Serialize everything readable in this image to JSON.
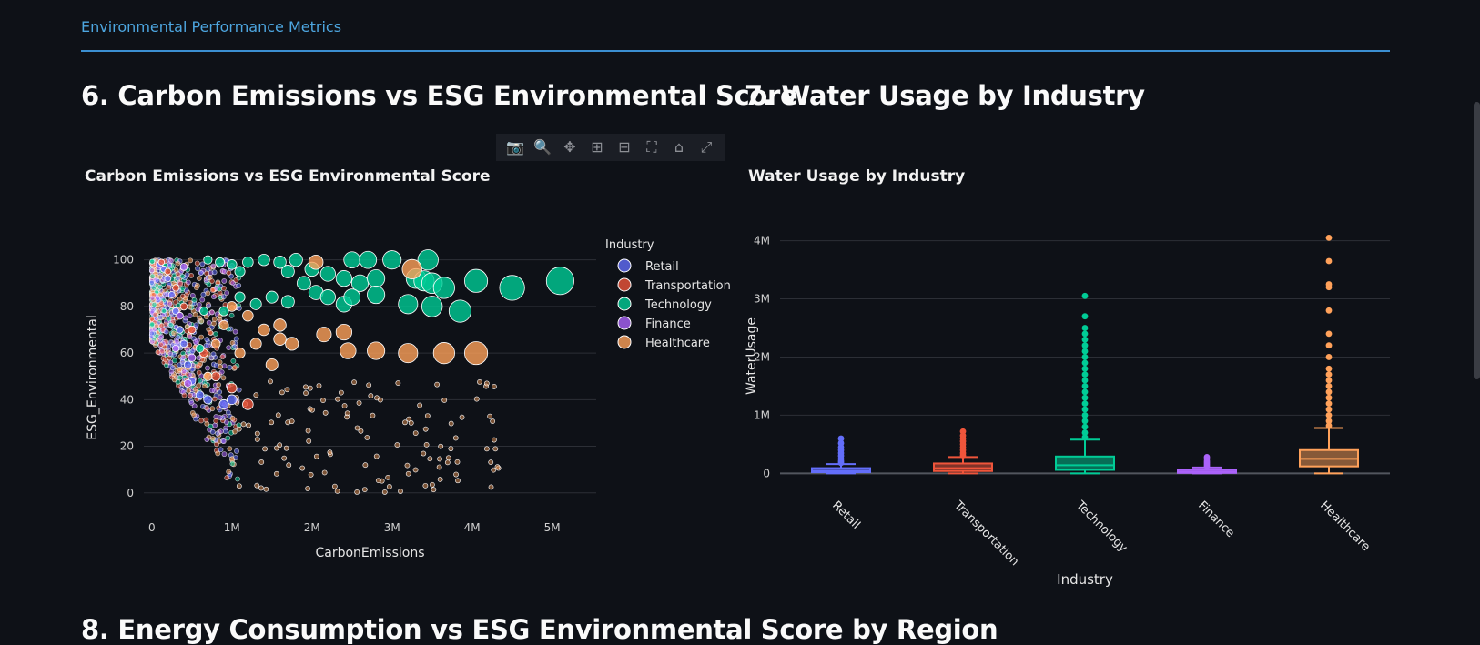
{
  "section_label": "Environmental Performance Metrics",
  "headings": {
    "scatter": "6. Carbon Emissions vs ESG Environmental Score",
    "box": "7. Water Usage by Industry",
    "next": "8. Energy Consumption vs ESG Environmental Score by Region"
  },
  "modebar": [
    {
      "icon": "camera-icon",
      "glyph": "📷"
    },
    {
      "icon": "zoom-icon",
      "glyph": "🔍"
    },
    {
      "icon": "pan-icon",
      "glyph": "✥"
    },
    {
      "icon": "zoom-in-icon",
      "glyph": "⊞"
    },
    {
      "icon": "zoom-out-icon",
      "glyph": "⊟"
    },
    {
      "icon": "autoscale-icon",
      "glyph": "⛶"
    },
    {
      "icon": "home-icon",
      "glyph": "⌂"
    },
    {
      "icon": "fullscreen-icon",
      "glyph": "⤢"
    }
  ],
  "colors": {
    "Retail": "#636efa",
    "Transportation": "#ef553b",
    "Technology": "#00cc96",
    "Finance": "#ab63fa",
    "Healthcare": "#ffa15a"
  },
  "chart_data": [
    {
      "type": "scatter",
      "title": "Carbon Emissions vs ESG Environmental Score",
      "xlabel": "CarbonEmissions",
      "ylabel": "ESG_Environmental",
      "xlim": [
        -100000,
        5550000
      ],
      "ylim": [
        -4,
        103
      ],
      "xticks": [
        0,
        1000000,
        2000000,
        3000000,
        4000000,
        5000000
      ],
      "xtick_labels": [
        "0",
        "1M",
        "2M",
        "3M",
        "4M",
        "5M"
      ],
      "yticks": [
        0,
        20,
        40,
        60,
        80,
        100
      ],
      "ytick_labels": [
        "0",
        "20",
        "40",
        "60",
        "80",
        "100"
      ],
      "grid": true,
      "legend_title": "Industry",
      "legend_position": "right",
      "series": [
        {
          "name": "Retail",
          "color": "#636efa",
          "points": [
            [
              100000,
              98
            ],
            [
              150000,
              96
            ],
            [
              200000,
              92
            ],
            [
              250000,
              85
            ],
            [
              300000,
              78
            ],
            [
              350000,
              70
            ],
            [
              400000,
              64
            ],
            [
              450000,
              55
            ],
            [
              500000,
              48
            ],
            [
              600000,
              42
            ],
            [
              700000,
              40
            ],
            [
              900000,
              38
            ],
            [
              1000000,
              40
            ]
          ]
        },
        {
          "name": "Transportation",
          "color": "#ef553b",
          "points": [
            [
              120000,
              99
            ],
            [
              200000,
              95
            ],
            [
              300000,
              88
            ],
            [
              400000,
              80
            ],
            [
              500000,
              70
            ],
            [
              650000,
              60
            ],
            [
              800000,
              50
            ],
            [
              1000000,
              45
            ],
            [
              1200000,
              38
            ]
          ]
        },
        {
          "name": "Technology",
          "color": "#00cc96",
          "points": [
            [
              700000,
              100
            ],
            [
              850000,
              99
            ],
            [
              1000000,
              98
            ],
            [
              1200000,
              99
            ],
            [
              1400000,
              100
            ],
            [
              1600000,
              99
            ],
            [
              1800000,
              100
            ],
            [
              2000000,
              96
            ],
            [
              2200000,
              94
            ],
            [
              2500000,
              100
            ],
            [
              2700000,
              100
            ],
            [
              3000000,
              100
            ],
            [
              3450000,
              100
            ],
            [
              2400000,
              92
            ],
            [
              2600000,
              90
            ],
            [
              2800000,
              92
            ],
            [
              3300000,
              92
            ],
            [
              3400000,
              91
            ],
            [
              3500000,
              90
            ],
            [
              3650000,
              88
            ],
            [
              4050000,
              91
            ],
            [
              4500000,
              88
            ],
            [
              5100000,
              91
            ],
            [
              3200000,
              81
            ],
            [
              3500000,
              80
            ],
            [
              3850000,
              78
            ],
            [
              2400000,
              81
            ],
            [
              2500000,
              84
            ],
            [
              2800000,
              85
            ],
            [
              2050000,
              86
            ],
            [
              1700000,
              82
            ],
            [
              1500000,
              84
            ],
            [
              1300000,
              81
            ],
            [
              1100000,
              84
            ],
            [
              900000,
              78
            ],
            [
              650000,
              78
            ],
            [
              600000,
              62
            ],
            [
              1100000,
              95
            ],
            [
              1700000,
              95
            ],
            [
              1900000,
              90
            ],
            [
              2200000,
              84
            ]
          ]
        },
        {
          "name": "Finance",
          "color": "#ab63fa",
          "points": [
            [
              400000,
              97
            ],
            [
              350000,
              76
            ],
            [
              500000,
              58
            ],
            [
              300000,
              62
            ],
            [
              450000,
              47
            ]
          ]
        },
        {
          "name": "Healthcare",
          "color": "#ffa15a",
          "points": [
            [
              2050000,
              99
            ],
            [
              3250000,
              96
            ],
            [
              2400000,
              69
            ],
            [
              2150000,
              68
            ],
            [
              2450000,
              61
            ],
            [
              2800000,
              61
            ],
            [
              3200000,
              60
            ],
            [
              3650000,
              60
            ],
            [
              4050000,
              60
            ],
            [
              1600000,
              66
            ],
            [
              1750000,
              64
            ],
            [
              1400000,
              70
            ],
            [
              1300000,
              64
            ],
            [
              1500000,
              55
            ],
            [
              1100000,
              60
            ],
            [
              900000,
              72
            ],
            [
              800000,
              64
            ],
            [
              700000,
              50
            ],
            [
              1000000,
              80
            ],
            [
              1200000,
              76
            ],
            [
              1600000,
              72
            ]
          ]
        }
      ],
      "note_small_points": "Dense cloud of small points near x=0-1M, y=0-100"
    },
    {
      "type": "box",
      "title": "Water Usage by Industry",
      "xlabel": "Industry",
      "ylabel": "WaterUsage",
      "ylim": [
        -120000,
        4150000
      ],
      "yticks": [
        0,
        1000000,
        2000000,
        3000000,
        4000000
      ],
      "ytick_labels": [
        "0",
        "1M",
        "2M",
        "3M",
        "4M"
      ],
      "categories": [
        "Retail",
        "Transportation",
        "Technology",
        "Finance",
        "Healthcare"
      ],
      "grid": true,
      "boxes": [
        {
          "name": "Retail",
          "color": "#636efa",
          "min": 0,
          "q1": 20000,
          "median": 45000,
          "q3": 90000,
          "max": 160000,
          "outliers": [
            180000,
            210000,
            250000,
            300000,
            350000,
            400000,
            450000,
            520000,
            600000
          ]
        },
        {
          "name": "Transportation",
          "color": "#ef553b",
          "min": 0,
          "q1": 40000,
          "median": 90000,
          "q3": 170000,
          "max": 280000,
          "outliers": [
            310000,
            350000,
            400000,
            450000,
            500000,
            550000,
            600000,
            650000,
            720000
          ]
        },
        {
          "name": "Technology",
          "color": "#00cc96",
          "min": 0,
          "q1": 60000,
          "median": 140000,
          "q3": 290000,
          "max": 580000,
          "outliers": [
            620000,
            700000,
            800000,
            900000,
            1000000,
            1100000,
            1200000,
            1300000,
            1400000,
            1500000,
            1600000,
            1700000,
            1800000,
            1900000,
            2000000,
            2100000,
            2200000,
            2300000,
            2400000,
            2500000,
            2700000,
            3050000
          ]
        },
        {
          "name": "Finance",
          "color": "#ab63fa",
          "min": 0,
          "q1": 10000,
          "median": 25000,
          "q3": 55000,
          "max": 100000,
          "outliers": [
            120000,
            150000,
            180000,
            210000,
            250000,
            280000
          ]
        },
        {
          "name": "Healthcare",
          "color": "#ffa15a",
          "min": 0,
          "q1": 120000,
          "median": 250000,
          "q3": 400000,
          "max": 780000,
          "outliers": [
            820000,
            900000,
            1000000,
            1100000,
            1200000,
            1300000,
            1400000,
            1500000,
            1600000,
            1700000,
            1800000,
            2000000,
            2200000,
            2400000,
            2800000,
            3200000,
            3250000,
            3650000,
            4050000
          ]
        }
      ]
    }
  ]
}
